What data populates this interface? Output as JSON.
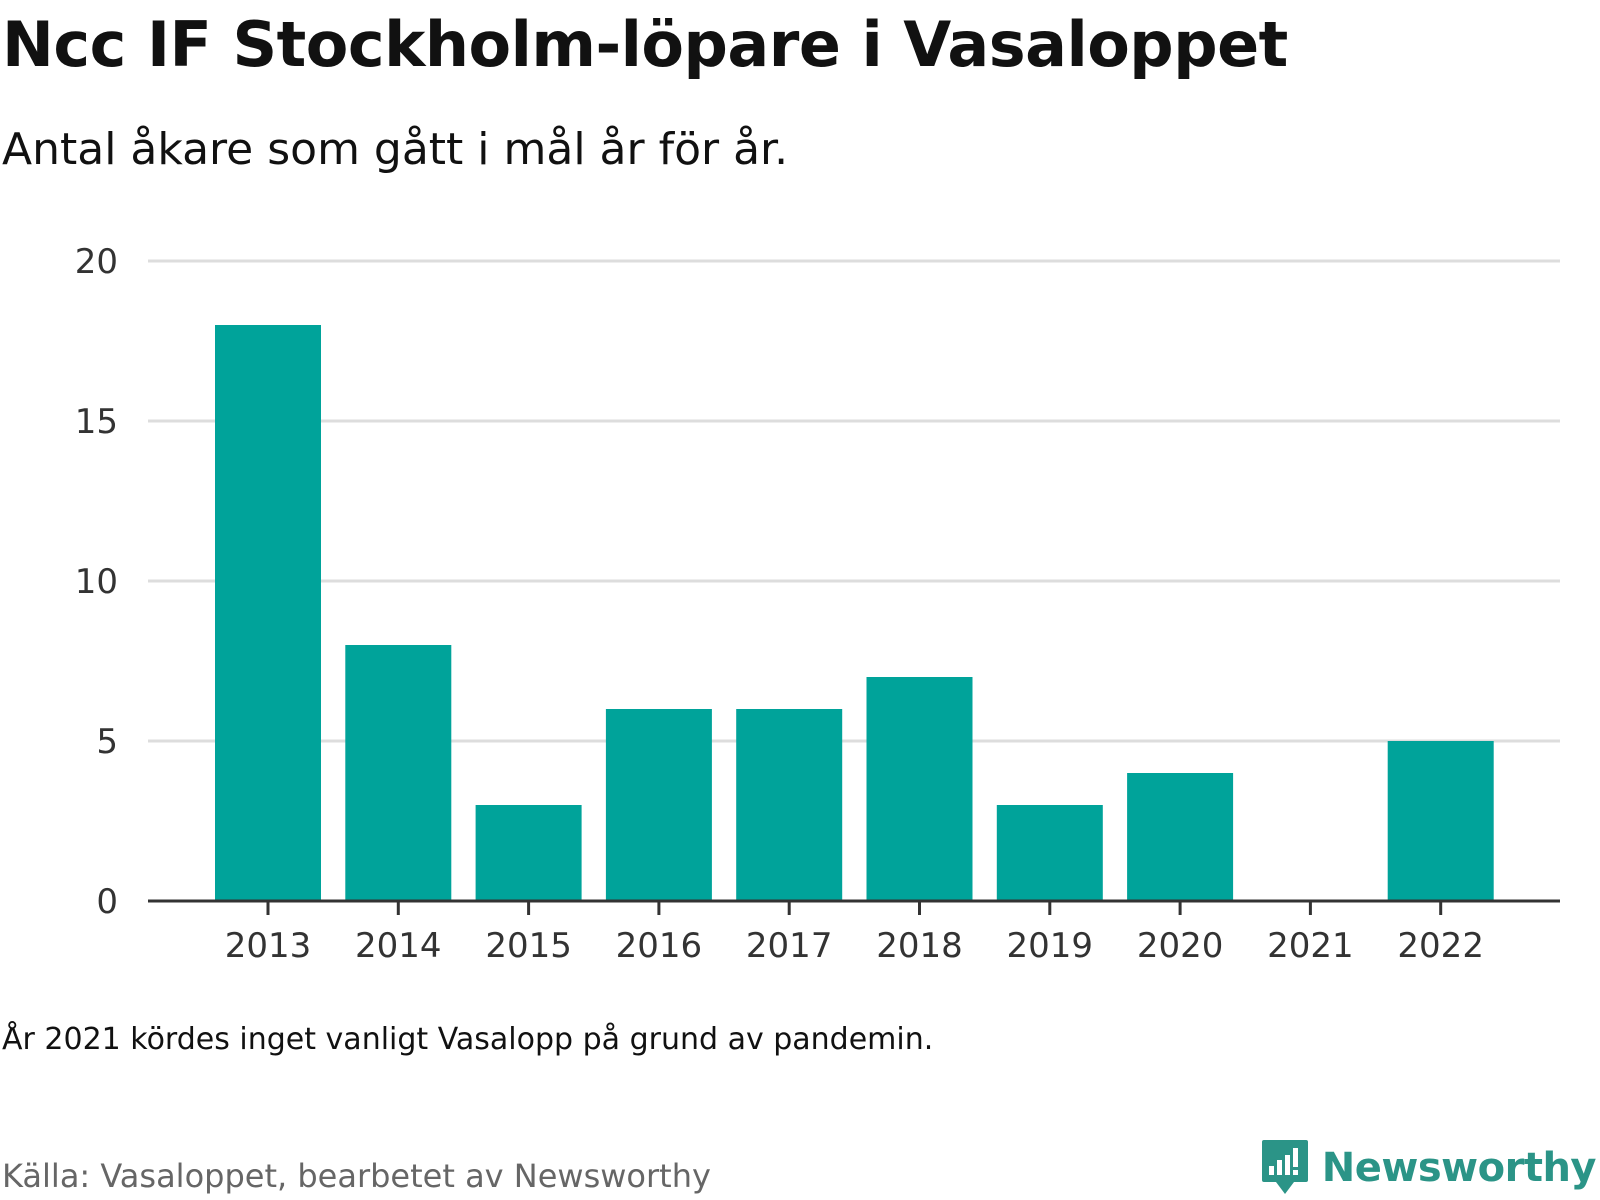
{
  "title": "Ncc IF Stockholm-löpare i Vasaloppet",
  "subtitle": "Antal åkare som gått i mål år för år.",
  "note": "År 2021 kördes inget vanligt Vasalopp på grund av pandemin.",
  "source": "Källa: Vasaloppet, bearbetet av Newsworthy",
  "brand": {
    "name": "Newsworthy",
    "icon": "newsworthy-logo-icon",
    "color": "#2b9487"
  },
  "colors": {
    "bar": "#00a39a",
    "grid": "#dddddd",
    "axis": "#333333"
  },
  "chart_data": {
    "type": "bar",
    "categories": [
      "2013",
      "2014",
      "2015",
      "2016",
      "2017",
      "2018",
      "2019",
      "2020",
      "2021",
      "2022"
    ],
    "values": [
      18,
      8,
      3,
      6,
      6,
      7,
      3,
      4,
      0,
      5
    ],
    "ylim": [
      0,
      20
    ],
    "yticks": [
      0,
      5,
      10,
      15,
      20
    ],
    "grid": true,
    "xlabel": "",
    "ylabel": ""
  }
}
